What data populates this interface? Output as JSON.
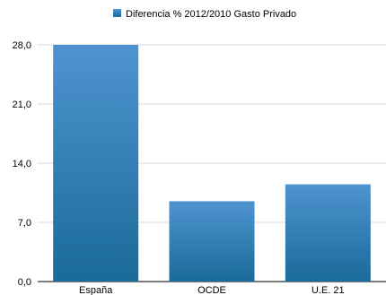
{
  "chart_data": {
    "type": "bar",
    "categories": [
      "España",
      "OCDE",
      "U.E. 21"
    ],
    "series": [
      {
        "name": "Diferencia % 2012/2010 Gasto Privado",
        "values": [
          28.0,
          9.5,
          11.5
        ]
      }
    ],
    "yticks": [
      "0,0",
      "7,0",
      "14,0",
      "21,0",
      "28,0"
    ],
    "ylim": [
      0,
      28
    ],
    "grid": true,
    "legend": "top-center",
    "bar_color_top": "#4f94d0",
    "bar_color_bottom": "#1a6a9a",
    "title": "",
    "xlabel": "",
    "ylabel": ""
  }
}
